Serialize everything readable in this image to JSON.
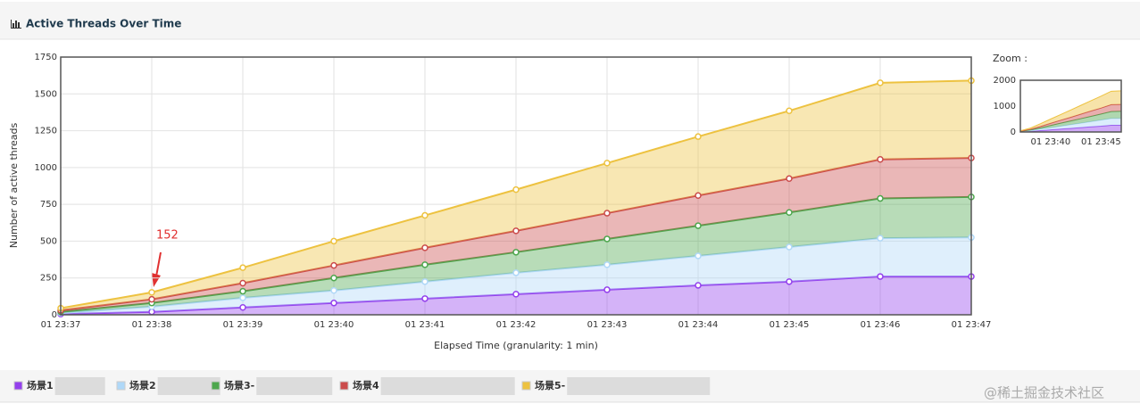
{
  "panel_title": "Active Threads Over Time",
  "chart_data": {
    "type": "stacked-area",
    "x_label": "Elapsed Time (granularity: 1 min)",
    "y_label": "Number of active threads",
    "categories": [
      "01 23:37",
      "01 23:38",
      "01 23:39",
      "01 23:40",
      "01 23:41",
      "01 23:42",
      "01 23:43",
      "01 23:44",
      "01 23:45",
      "01 23:46",
      "01 23:47"
    ],
    "series": [
      {
        "name": "场景1",
        "color": "#9440ed",
        "values": [
          5,
          20,
          50,
          80,
          110,
          140,
          170,
          200,
          225,
          260,
          260
        ]
      },
      {
        "name": "场景2",
        "color": "#afd8f8",
        "values": [
          7,
          35,
          65,
          85,
          115,
          145,
          170,
          200,
          235,
          260,
          265
        ]
      },
      {
        "name": "场景3-",
        "color": "#4da74d",
        "values": [
          8,
          25,
          45,
          85,
          115,
          140,
          175,
          205,
          235,
          270,
          275
        ]
      },
      {
        "name": "场景4",
        "color": "#cb4b4b",
        "values": [
          10,
          25,
          55,
          85,
          115,
          145,
          175,
          205,
          230,
          265,
          265
        ]
      },
      {
        "name": "场景5-",
        "color": "#edc240",
        "values": [
          15,
          47,
          105,
          165,
          220,
          280,
          340,
          400,
          460,
          520,
          525
        ]
      }
    ],
    "ylim": [
      0,
      1750
    ],
    "yticks": [
      0,
      250,
      500,
      750,
      1000,
      1250,
      1500,
      1750
    ],
    "grid": true,
    "annotation": "152"
  },
  "zoom": {
    "label": "Zoom :",
    "ylim": [
      0,
      2000
    ],
    "yticks": [
      0,
      1000,
      2000
    ],
    "xticks": [
      {
        "value": 3,
        "label": "01 23:40"
      },
      {
        "value": 8,
        "label": "01 23:45"
      }
    ]
  },
  "watermark": "@稀土掘金技术社区"
}
